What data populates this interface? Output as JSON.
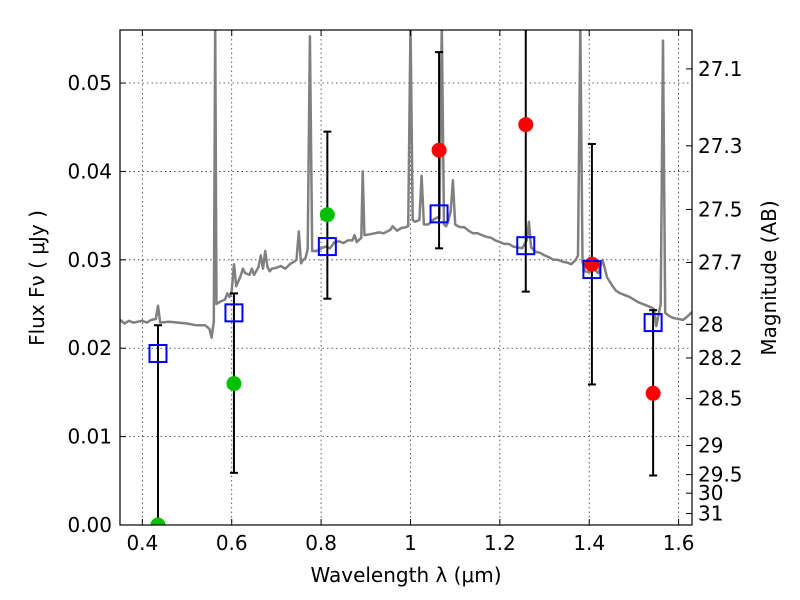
{
  "chart_data": {
    "type": "scatter",
    "title": "",
    "xlabel": "Wavelength  λ (μm)",
    "ylabel": "Flux  Fν  ( μJy )",
    "y2label": "Magnitude (AB)",
    "xlim": [
      0.35,
      1.63
    ],
    "ylim": [
      0.0,
      0.056
    ],
    "grid": true,
    "x_ticks": [
      {
        "value": 0.4,
        "label": "0.4"
      },
      {
        "value": 0.6,
        "label": "0.6"
      },
      {
        "value": 0.8,
        "label": "0.8"
      },
      {
        "value": 1.0,
        "label": "1"
      },
      {
        "value": 1.2,
        "label": "1.2"
      },
      {
        "value": 1.4,
        "label": "1.4"
      },
      {
        "value": 1.6,
        "label": "1.6"
      }
    ],
    "y_ticks": [
      {
        "value": 0.0,
        "label": "0.00"
      },
      {
        "value": 0.01,
        "label": "0.01"
      },
      {
        "value": 0.02,
        "label": "0.02"
      },
      {
        "value": 0.03,
        "label": "0.03"
      },
      {
        "value": 0.04,
        "label": "0.04"
      },
      {
        "value": 0.05,
        "label": "0.05"
      }
    ],
    "mag_ticks": [
      {
        "value": 0.0516,
        "label": "27.1"
      },
      {
        "value": 0.0429,
        "label": "27.3"
      },
      {
        "value": 0.0357,
        "label": "27.5"
      },
      {
        "value": 0.0297,
        "label": "27.7"
      },
      {
        "value": 0.0227,
        "label": "28"
      },
      {
        "value": 0.0189,
        "label": "28.2"
      },
      {
        "value": 0.0143,
        "label": "28.5"
      },
      {
        "value": 0.009,
        "label": "29"
      },
      {
        "value": 0.0057,
        "label": "29.5"
      },
      {
        "value": 0.0036,
        "label": "30"
      },
      {
        "value": 0.0013,
        "label": "31"
      }
    ],
    "series": [
      {
        "kind": "line",
        "color": "#808080",
        "points": [
          [
            0.35,
            0.0232
          ],
          [
            0.36,
            0.0228
          ],
          [
            0.37,
            0.0231
          ],
          [
            0.38,
            0.0229
          ],
          [
            0.39,
            0.023
          ],
          [
            0.4,
            0.0231
          ],
          [
            0.41,
            0.0229
          ],
          [
            0.42,
            0.0232
          ],
          [
            0.43,
            0.0233
          ],
          [
            0.435,
            0.0248
          ],
          [
            0.44,
            0.0229
          ],
          [
            0.46,
            0.023
          ],
          [
            0.48,
            0.0229
          ],
          [
            0.5,
            0.0228
          ],
          [
            0.52,
            0.0226
          ],
          [
            0.54,
            0.0226
          ],
          [
            0.55,
            0.0222
          ],
          [
            0.555,
            0.0212
          ],
          [
            0.56,
            0.023
          ],
          [
            0.563,
            0.0566
          ],
          [
            0.566,
            0.025
          ],
          [
            0.575,
            0.0253
          ],
          [
            0.585,
            0.0255
          ],
          [
            0.59,
            0.0262
          ],
          [
            0.595,
            0.0258
          ],
          [
            0.6,
            0.0265
          ],
          [
            0.605,
            0.0295
          ],
          [
            0.61,
            0.027
          ],
          [
            0.62,
            0.0282
          ],
          [
            0.625,
            0.029
          ],
          [
            0.63,
            0.0285
          ],
          [
            0.64,
            0.0283
          ],
          [
            0.645,
            0.029
          ],
          [
            0.65,
            0.0283
          ],
          [
            0.66,
            0.0292
          ],
          [
            0.665,
            0.0305
          ],
          [
            0.67,
            0.029
          ],
          [
            0.675,
            0.031
          ],
          [
            0.68,
            0.0292
          ],
          [
            0.685,
            0.0287
          ],
          [
            0.69,
            0.029
          ],
          [
            0.7,
            0.0291
          ],
          [
            0.71,
            0.0293
          ],
          [
            0.72,
            0.029
          ],
          [
            0.73,
            0.0295
          ],
          [
            0.74,
            0.0298
          ],
          [
            0.745,
            0.03
          ],
          [
            0.75,
            0.0332
          ],
          [
            0.755,
            0.0296
          ],
          [
            0.76,
            0.03
          ],
          [
            0.765,
            0.0302
          ],
          [
            0.77,
            0.0312
          ],
          [
            0.775,
            0.0553
          ],
          [
            0.78,
            0.031
          ],
          [
            0.79,
            0.031
          ],
          [
            0.8,
            0.0313
          ],
          [
            0.81,
            0.0315
          ],
          [
            0.82,
            0.0313
          ],
          [
            0.83,
            0.032
          ],
          [
            0.84,
            0.0321
          ],
          [
            0.85,
            0.0319
          ],
          [
            0.86,
            0.0322
          ],
          [
            0.87,
            0.0322
          ],
          [
            0.875,
            0.0328
          ],
          [
            0.88,
            0.032
          ],
          [
            0.89,
            0.0325
          ],
          [
            0.893,
            0.04
          ],
          [
            0.897,
            0.0328
          ],
          [
            0.91,
            0.0329
          ],
          [
            0.93,
            0.0331
          ],
          [
            0.94,
            0.033
          ],
          [
            0.955,
            0.0334
          ],
          [
            0.96,
            0.0338
          ],
          [
            0.97,
            0.0333
          ],
          [
            0.98,
            0.0336
          ],
          [
            0.99,
            0.0337
          ],
          [
            0.995,
            0.0338
          ],
          [
            1.0,
            0.0566
          ],
          [
            1.005,
            0.0345
          ],
          [
            1.01,
            0.0343
          ],
          [
            1.02,
            0.0345
          ],
          [
            1.025,
            0.0395
          ],
          [
            1.03,
            0.034
          ],
          [
            1.04,
            0.034
          ],
          [
            1.05,
            0.0345
          ],
          [
            1.06,
            0.0348
          ],
          [
            1.065,
            0.0347
          ],
          [
            1.07,
            0.0566
          ],
          [
            1.075,
            0.034
          ],
          [
            1.08,
            0.0338
          ],
          [
            1.085,
            0.0345
          ],
          [
            1.09,
            0.0355
          ],
          [
            1.095,
            0.039
          ],
          [
            1.1,
            0.034
          ],
          [
            1.11,
            0.0337
          ],
          [
            1.12,
            0.0337
          ],
          [
            1.13,
            0.0333
          ],
          [
            1.14,
            0.033
          ],
          [
            1.15,
            0.033
          ],
          [
            1.16,
            0.0328
          ],
          [
            1.17,
            0.0326
          ],
          [
            1.18,
            0.0325
          ],
          [
            1.19,
            0.0322
          ],
          [
            1.2,
            0.032
          ],
          [
            1.21,
            0.0318
          ],
          [
            1.22,
            0.0318
          ],
          [
            1.23,
            0.0315
          ],
          [
            1.24,
            0.0314
          ],
          [
            1.25,
            0.0313
          ],
          [
            1.26,
            0.0322
          ],
          [
            1.265,
            0.0343
          ],
          [
            1.27,
            0.0314
          ],
          [
            1.28,
            0.0309
          ],
          [
            1.29,
            0.0308
          ],
          [
            1.3,
            0.0305
          ],
          [
            1.31,
            0.0303
          ],
          [
            1.32,
            0.03
          ],
          [
            1.33,
            0.03
          ],
          [
            1.34,
            0.0298
          ],
          [
            1.35,
            0.0297
          ],
          [
            1.36,
            0.0295
          ],
          [
            1.37,
            0.03
          ],
          [
            1.375,
            0.0305
          ],
          [
            1.38,
            0.0566
          ],
          [
            1.385,
            0.0298
          ],
          [
            1.39,
            0.0287
          ],
          [
            1.4,
            0.0286
          ],
          [
            1.41,
            0.029
          ],
          [
            1.42,
            0.0285
          ],
          [
            1.43,
            0.03
          ],
          [
            1.44,
            0.028
          ],
          [
            1.45,
            0.0272
          ],
          [
            1.46,
            0.0265
          ],
          [
            1.47,
            0.0262
          ],
          [
            1.48,
            0.026
          ],
          [
            1.49,
            0.0258
          ],
          [
            1.5,
            0.0255
          ],
          [
            1.51,
            0.0252
          ],
          [
            1.52,
            0.025
          ],
          [
            1.53,
            0.0248
          ],
          [
            1.54,
            0.0246
          ],
          [
            1.545,
            0.0244
          ],
          [
            1.55,
            0.0225
          ],
          [
            1.56,
            0.025
          ],
          [
            1.565,
            0.0548
          ],
          [
            1.57,
            0.024
          ],
          [
            1.58,
            0.0236
          ],
          [
            1.59,
            0.0234
          ],
          [
            1.6,
            0.0233
          ],
          [
            1.61,
            0.0232
          ],
          [
            1.62,
            0.0236
          ],
          [
            1.63,
            0.0241
          ]
        ]
      },
      {
        "kind": "errorbar",
        "color": "#000000",
        "points": [
          {
            "x": 0.435,
            "low": 0.0,
            "high": 0.0226
          },
          {
            "x": 0.605,
            "low": 0.0059,
            "high": 0.0262
          },
          {
            "x": 0.814,
            "low": 0.0256,
            "high": 0.0445
          },
          {
            "x": 1.064,
            "low": 0.0313,
            "high": 0.0535
          },
          {
            "x": 1.258,
            "low": 0.0264,
            "high": 0.0566
          },
          {
            "x": 1.406,
            "low": 0.0159,
            "high": 0.0431
          },
          {
            "x": 1.543,
            "low": 0.0056,
            "high": 0.0243
          }
        ]
      },
      {
        "kind": "circle",
        "color": "#00c000",
        "points": [
          [
            0.435,
            0.0
          ],
          [
            0.605,
            0.016
          ],
          [
            0.814,
            0.0351
          ]
        ]
      },
      {
        "kind": "circle",
        "color": "#ff0000",
        "points": [
          [
            1.064,
            0.0424
          ],
          [
            1.258,
            0.0453
          ],
          [
            1.406,
            0.0295
          ],
          [
            1.543,
            0.0149
          ]
        ]
      },
      {
        "kind": "square",
        "color": "#0000ff",
        "points": [
          [
            0.435,
            0.0194
          ],
          [
            0.605,
            0.024
          ],
          [
            0.814,
            0.0315
          ],
          [
            1.064,
            0.0352
          ],
          [
            1.258,
            0.0316
          ],
          [
            1.406,
            0.0289
          ],
          [
            1.543,
            0.0229
          ]
        ]
      }
    ]
  }
}
